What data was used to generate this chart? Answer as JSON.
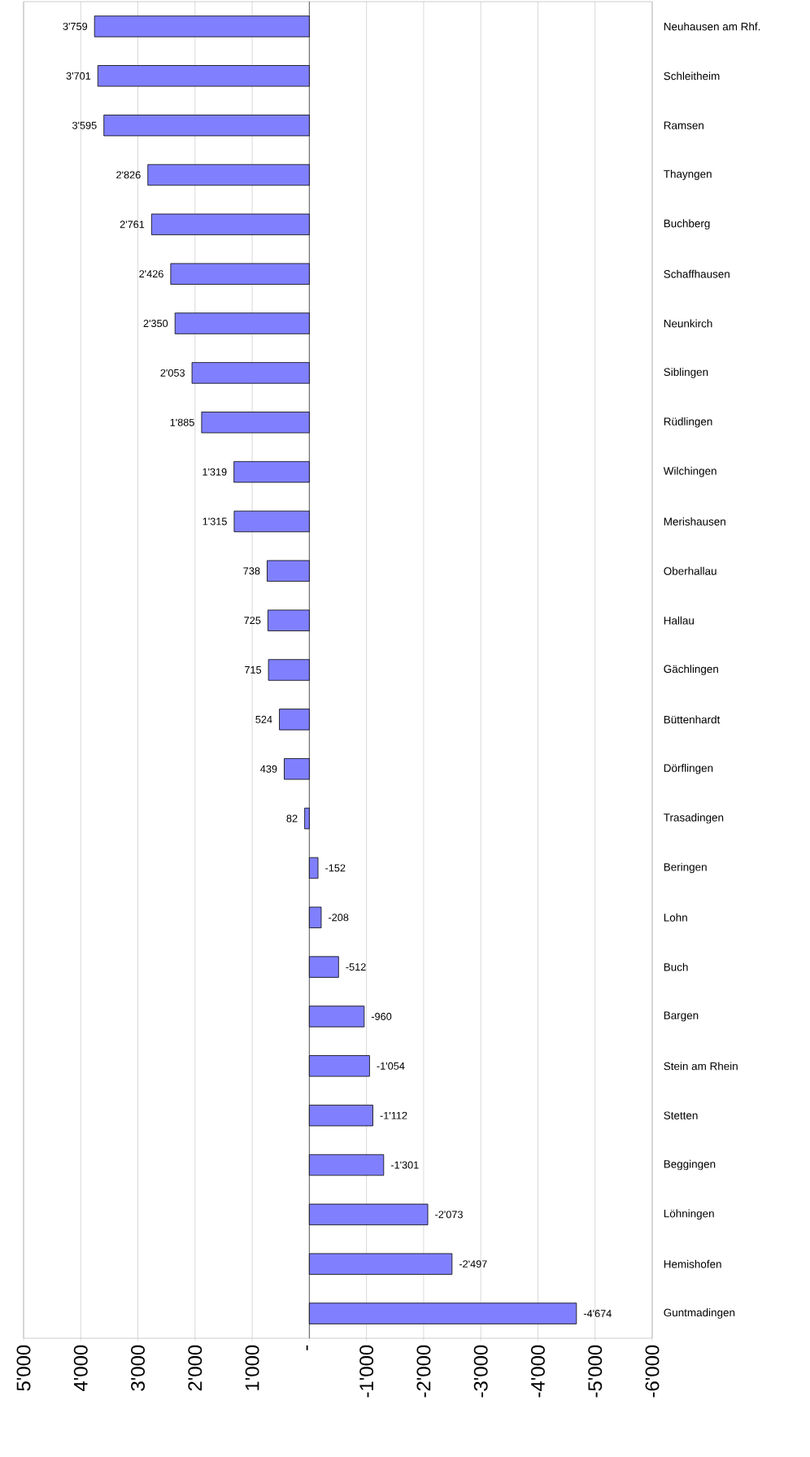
{
  "chart_data": {
    "type": "bar",
    "orientation": "horizontal",
    "categories": [
      "Neuhausen am Rhf.",
      "Schleitheim",
      "Ramsen",
      "Thayngen",
      "Buchberg",
      "Schaffhausen",
      "Neunkirch",
      "Siblingen",
      "Rüdlingen",
      "Wilchingen",
      "Merishausen",
      "Oberhallau",
      "Hallau",
      "Gächlingen",
      "Büttenhardt",
      "Dörflingen",
      "Trasadingen",
      "Beringen",
      "Lohn",
      "Buch",
      "Bargen",
      "Stein am Rhein",
      "Stetten",
      "Beggingen",
      "Löhningen",
      "Hemishofen",
      "Guntmadingen"
    ],
    "values": [
      3759,
      3701,
      3595,
      2826,
      2761,
      2426,
      2350,
      2053,
      1885,
      1319,
      1315,
      738,
      725,
      715,
      524,
      439,
      82,
      -152,
      -208,
      -512,
      -960,
      -1054,
      -1112,
      -1301,
      -2073,
      -2497,
      -4674
    ],
    "value_labels": [
      "3'759",
      "3'701",
      "3'595",
      "2'826",
      "2'761",
      "2'426",
      "2'350",
      "2'053",
      "1'885",
      "1'319",
      "1'315",
      "738",
      "725",
      "715",
      "524",
      "439",
      "82",
      "-152",
      "-208",
      "-512",
      "-960",
      "-1'054",
      "-1'112",
      "-1'301",
      "-2'073",
      "-2'497",
      "-4'674"
    ],
    "color": "#8080ff",
    "xlim": [
      5000,
      -6000
    ],
    "xticks": [
      {
        "value": 5000,
        "label": "5'000"
      },
      {
        "value": 4000,
        "label": "4'000"
      },
      {
        "value": 3000,
        "label": "3'000"
      },
      {
        "value": 2000,
        "label": "2'000"
      },
      {
        "value": 1000,
        "label": "1'000"
      },
      {
        "value": 0,
        "label": "-"
      },
      {
        "value": -1000,
        "label": "-1'000"
      },
      {
        "value": -2000,
        "label": "-2'000"
      },
      {
        "value": -3000,
        "label": "-3'000"
      },
      {
        "value": -4000,
        "label": "-4'000"
      },
      {
        "value": -5000,
        "label": "-5'000"
      },
      {
        "value": -6000,
        "label": "-6'000"
      }
    ],
    "grid": "x"
  }
}
